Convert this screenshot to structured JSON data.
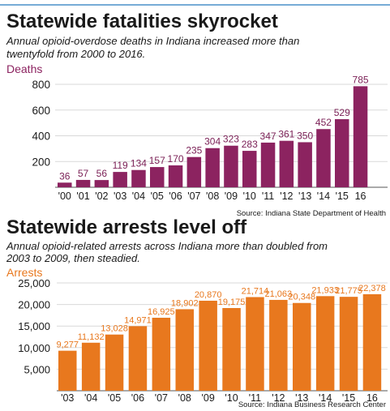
{
  "chart_data": [
    {
      "type": "bar",
      "title": "Statewide fatalities skyrocket",
      "subtitle": "Annual opioid-overdose deaths in Indiana increased more than twentyfold from 2000 to 2016.",
      "subtitle_lines": [
        "Annual opioid-overdose deaths in Indiana increased more than",
        "twentyfold from 2000 to 2016."
      ],
      "ylabel": "Deaths",
      "xlabel": "",
      "categories": [
        "'00",
        "'01",
        "'02",
        "'03",
        "'04",
        "'05",
        "'06",
        "'07",
        "'08",
        "'09",
        "'10",
        "'11",
        "'12",
        "'13",
        "'14",
        "'15",
        "16"
      ],
      "values": [
        36,
        57,
        56,
        119,
        134,
        157,
        170,
        235,
        304,
        323,
        283,
        347,
        361,
        350,
        452,
        529,
        785
      ],
      "value_labels": [
        "36",
        "57",
        "56",
        "119",
        "134",
        "157",
        "170",
        "235",
        "304",
        "323",
        "283",
        "347",
        "361",
        "350",
        "452",
        "529",
        "785"
      ],
      "ylim": [
        0,
        800
      ],
      "yticks": [
        200,
        400,
        600,
        800
      ],
      "ytick_labels": [
        "200",
        "400",
        "600",
        "800"
      ],
      "grid": true,
      "source": "Source: Indiana State Department of Health",
      "colors": {
        "bar": "#8c2360",
        "label": "#7a1f55",
        "ylabel": "#8c2360"
      }
    },
    {
      "type": "bar",
      "title": "Statewide arrests level off",
      "subtitle": "Annual opioid-related arrests across Indiana more than doubled from 2003 to 2009, then steadied.",
      "subtitle_lines": [
        "Annual opioid-related arrests across Indiana more than doubled from",
        "2003 to 2009, then steadied."
      ],
      "ylabel": "Arrests",
      "xlabel": "",
      "categories": [
        "'03",
        "'04",
        "'05",
        "'06",
        "'07",
        "'08",
        "'09",
        "'10",
        "'11",
        "'12",
        "'13",
        "'14",
        "'15",
        "16"
      ],
      "values": [
        9277,
        11132,
        13028,
        14971,
        16925,
        18902,
        20870,
        19175,
        21714,
        21063,
        20348,
        21933,
        21775,
        22378
      ],
      "value_labels": [
        "9,277",
        "11,132",
        "13,028",
        "14,971",
        "16,925",
        "18,902",
        "20,870",
        "19,175",
        "21,714",
        "21,063",
        "20,348",
        "21,933",
        "21,775",
        "22,378"
      ],
      "ylim": [
        0,
        25000
      ],
      "yticks": [
        5000,
        10000,
        15000,
        20000,
        25000
      ],
      "ytick_labels": [
        "5,000",
        "10,000",
        "15,000",
        "20,000",
        "25,000"
      ],
      "grid": true,
      "source": "Source: Indiana Business Research Center",
      "colors": {
        "bar": "#e8781e",
        "label": "#e8781e",
        "ylabel": "#e8781e"
      }
    }
  ],
  "colors": {
    "rule": "#4a90c8",
    "grid": "#d9d9d9",
    "text": "#1a1a1a",
    "axis": "#555555"
  }
}
